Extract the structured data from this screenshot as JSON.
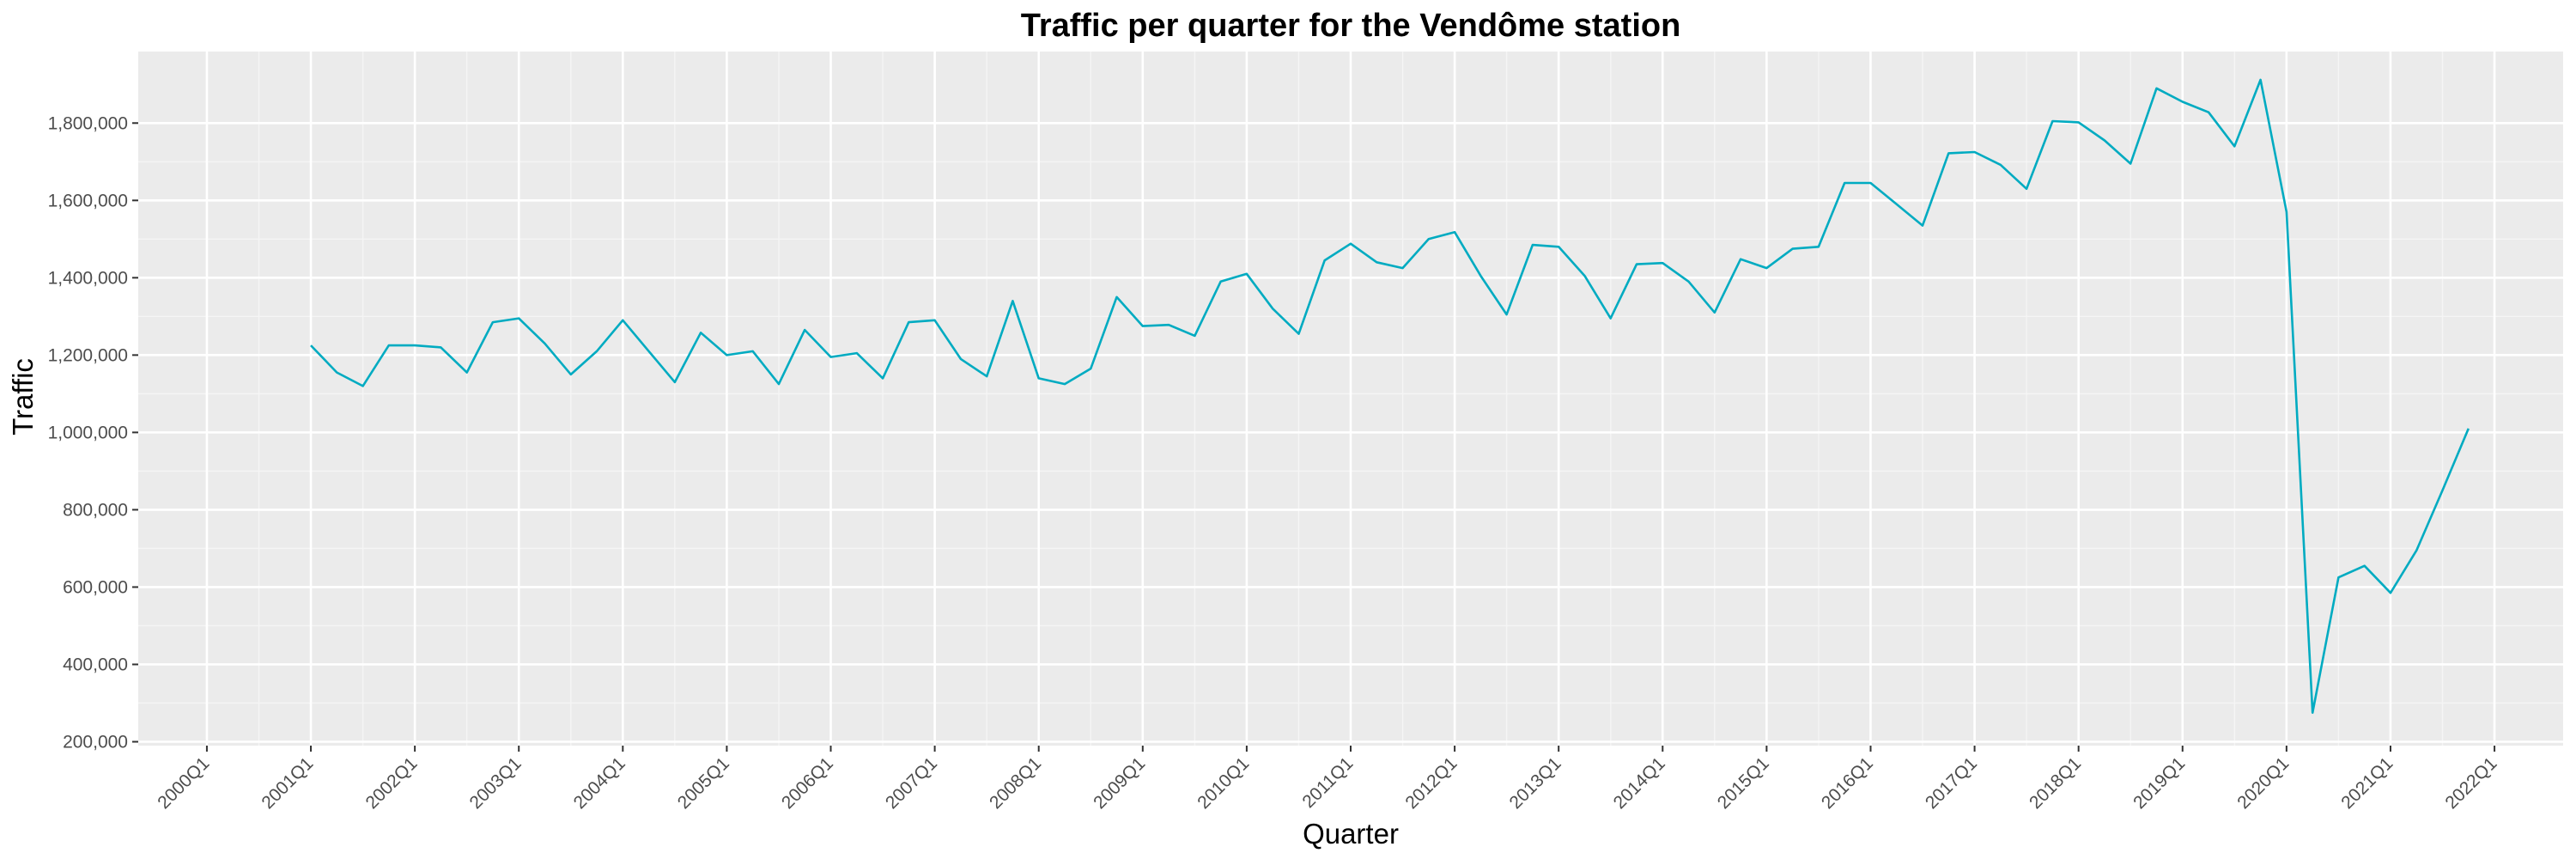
{
  "chart_data": {
    "type": "line",
    "title": "Traffic per quarter for the Vendôme station",
    "xlabel": "Quarter",
    "ylabel": "Traffic",
    "grid": true,
    "legend": "none",
    "colors": {
      "line": "#00abc1",
      "panel": "#ebebeb",
      "grid_major": "#ffffff",
      "grid_minor": "#f5f5f5",
      "tick_text": "#4d4d4d"
    },
    "x_tick_labels": [
      "2000Q1",
      "2001Q1",
      "2002Q1",
      "2003Q1",
      "2004Q1",
      "2005Q1",
      "2006Q1",
      "2007Q1",
      "2008Q1",
      "2009Q1",
      "2010Q1",
      "2011Q1",
      "2012Q1",
      "2013Q1",
      "2014Q1",
      "2015Q1",
      "2016Q1",
      "2017Q1",
      "2018Q1",
      "2019Q1",
      "2020Q1",
      "2021Q1",
      "2022Q1"
    ],
    "y_ticks": [
      200000,
      400000,
      600000,
      800000,
      1000000,
      1200000,
      1400000,
      1600000,
      1800000
    ],
    "y_tick_labels": [
      "200,000",
      "400,000",
      "600,000",
      "800,000",
      "1,000,000",
      "1,200,000",
      "1,400,000",
      "1,600,000",
      "1,800,000"
    ],
    "ylim": [
      190000,
      1985000
    ],
    "xlim": [
      "2000Q1",
      "2022Q1"
    ],
    "series": [
      {
        "points": [
          [
            "2001Q1",
            1225000
          ],
          [
            "2001Q2",
            1155000
          ],
          [
            "2001Q3",
            1120000
          ],
          [
            "2001Q4",
            1225000
          ],
          [
            "2002Q1",
            1225000
          ],
          [
            "2002Q2",
            1220000
          ],
          [
            "2002Q3",
            1155000
          ],
          [
            "2002Q4",
            1285000
          ],
          [
            "2003Q1",
            1295000
          ],
          [
            "2003Q2",
            1230000
          ],
          [
            "2003Q3",
            1150000
          ],
          [
            "2003Q4",
            1210000
          ],
          [
            "2004Q1",
            1290000
          ],
          [
            "2004Q2",
            1210000
          ],
          [
            "2004Q3",
            1130000
          ],
          [
            "2004Q4",
            1258000
          ],
          [
            "2005Q1",
            1200000
          ],
          [
            "2005Q2",
            1210000
          ],
          [
            "2005Q3",
            1125000
          ],
          [
            "2005Q4",
            1265000
          ],
          [
            "2006Q1",
            1195000
          ],
          [
            "2006Q2",
            1205000
          ],
          [
            "2006Q3",
            1140000
          ],
          [
            "2006Q4",
            1285000
          ],
          [
            "2007Q1",
            1290000
          ],
          [
            "2007Q2",
            1190000
          ],
          [
            "2007Q3",
            1145000
          ],
          [
            "2007Q4",
            1340000
          ],
          [
            "2008Q1",
            1140000
          ],
          [
            "2008Q2",
            1125000
          ],
          [
            "2008Q3",
            1165000
          ],
          [
            "2008Q4",
            1350000
          ],
          [
            "2009Q1",
            1275000
          ],
          [
            "2009Q2",
            1278000
          ],
          [
            "2009Q3",
            1250000
          ],
          [
            "2009Q4",
            1390000
          ],
          [
            "2010Q1",
            1410000
          ],
          [
            "2010Q2",
            1320000
          ],
          [
            "2010Q3",
            1255000
          ],
          [
            "2010Q4",
            1445000
          ],
          [
            "2011Q1",
            1488000
          ],
          [
            "2011Q2",
            1440000
          ],
          [
            "2011Q3",
            1425000
          ],
          [
            "2011Q4",
            1500000
          ],
          [
            "2012Q1",
            1518000
          ],
          [
            "2012Q2",
            1405000
          ],
          [
            "2012Q3",
            1305000
          ],
          [
            "2012Q4",
            1485000
          ],
          [
            "2013Q1",
            1480000
          ],
          [
            "2013Q2",
            1405000
          ],
          [
            "2013Q3",
            1295000
          ],
          [
            "2013Q4",
            1435000
          ],
          [
            "2014Q1",
            1438000
          ],
          [
            "2014Q2",
            1390000
          ],
          [
            "2014Q3",
            1310000
          ],
          [
            "2014Q4",
            1448000
          ],
          [
            "2015Q1",
            1425000
          ],
          [
            "2015Q2",
            1475000
          ],
          [
            "2015Q3",
            1480000
          ],
          [
            "2015Q4",
            1645000
          ],
          [
            "2016Q1",
            1645000
          ],
          [
            "2016Q2",
            1590000
          ],
          [
            "2016Q3",
            1535000
          ],
          [
            "2016Q4",
            1722000
          ],
          [
            "2017Q1",
            1725000
          ],
          [
            "2017Q2",
            1692000
          ],
          [
            "2017Q3",
            1630000
          ],
          [
            "2017Q4",
            1805000
          ],
          [
            "2018Q1",
            1802000
          ],
          [
            "2018Q2",
            1755000
          ],
          [
            "2018Q3",
            1695000
          ],
          [
            "2018Q4",
            1890000
          ],
          [
            "2019Q1",
            1855000
          ],
          [
            "2019Q2",
            1828000
          ],
          [
            "2019Q3",
            1740000
          ],
          [
            "2019Q4",
            1912000
          ],
          [
            "2020Q1",
            1570000
          ],
          [
            "2020Q2",
            275000
          ],
          [
            "2020Q3",
            625000
          ],
          [
            "2020Q4",
            655000
          ],
          [
            "2021Q1",
            585000
          ],
          [
            "2021Q2",
            695000
          ],
          [
            "2021Q3",
            850000
          ],
          [
            "2021Q4",
            1010000
          ]
        ]
      }
    ]
  }
}
